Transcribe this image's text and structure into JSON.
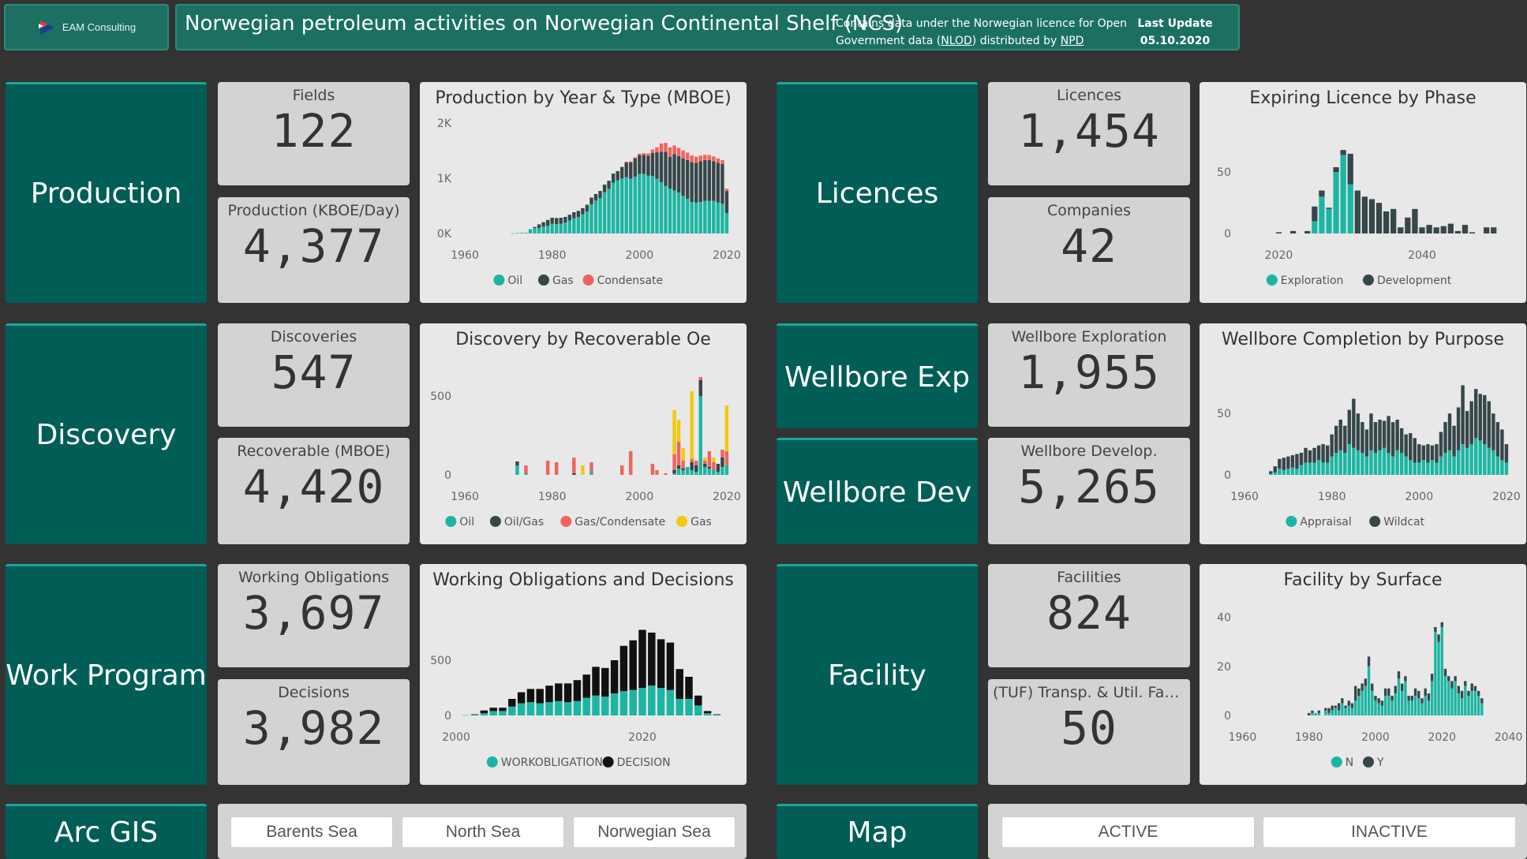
{
  "header": {
    "logo_text": "EAM Consulting",
    "title": "Norwegian petroleum activities on Norwegian Continental Shelf (NCS)",
    "licence_line1": "Contains data under the Norwegian licence for Open",
    "licence_line2_pre": "Government data (",
    "licence_link_nlod": "NLOD",
    "licence_line2_mid": ") distributed by ",
    "licence_link_npd": "NPD",
    "last_update_label": "Last Update",
    "last_update_value": "05.10.2020"
  },
  "tiles": {
    "production": "Production",
    "discovery": "Discovery",
    "work_program": "Work Program",
    "arcgis": "Arc GIS",
    "licences": "Licences",
    "wellbore_exp": "Wellbore Exp",
    "wellbore_dev": "Wellbore Dev",
    "facility": "Facility",
    "map": "Map"
  },
  "kpis": {
    "fields": {
      "label": "Fields",
      "value": "122"
    },
    "production": {
      "label": "Production (KBOE/Day)",
      "value": "4,377"
    },
    "discoveries": {
      "label": "Discoveries",
      "value": "547"
    },
    "recoverable": {
      "label": "Recoverable (MBOE)",
      "value": "4,420"
    },
    "working_obligations": {
      "label": "Working Obligations",
      "value": "3,697"
    },
    "decisions": {
      "label": "Decisions",
      "value": "3,982"
    },
    "licences": {
      "label": "Licences",
      "value": "1,454"
    },
    "companies": {
      "label": "Companies",
      "value": "42"
    },
    "wellbore_exploration": {
      "label": "Wellbore Exploration",
      "value": "1,955"
    },
    "wellbore_develop": {
      "label": "Wellbore Develop.",
      "value": "5,265"
    },
    "facilities": {
      "label": "Facilities",
      "value": "824"
    },
    "tuf": {
      "label": "(TUF) Transp. & Util. Faci...",
      "value": "50"
    }
  },
  "slicers": {
    "sea": [
      "Barents Sea",
      "North Sea",
      "Norwegian Sea"
    ],
    "status": [
      "ACTIVE",
      "INACTIVE"
    ]
  },
  "colors": {
    "teal": "#1cb5a3",
    "dark": "#374649",
    "red": "#f0645f",
    "yellow": "#f2c80f",
    "black": "#111111"
  },
  "chart_data": [
    {
      "id": "production",
      "type": "bar",
      "stacked": true,
      "title": "Production by Year & Type (MBOE)",
      "x": [
        1971,
        1972,
        1973,
        1974,
        1975,
        1976,
        1977,
        1978,
        1979,
        1980,
        1981,
        1982,
        1983,
        1984,
        1985,
        1986,
        1987,
        1988,
        1989,
        1990,
        1991,
        1992,
        1993,
        1994,
        1995,
        1996,
        1997,
        1998,
        1999,
        2000,
        2001,
        2002,
        2003,
        2004,
        2005,
        2006,
        2007,
        2008,
        2009,
        2010,
        2011,
        2012,
        2013,
        2014,
        2015,
        2016,
        2017,
        2018,
        2019,
        2020
      ],
      "series": [
        {
          "name": "Oil",
          "color": "#1cb5a3",
          "values": [
            2,
            10,
            12,
            13,
            70,
            98,
            100,
            125,
            140,
            175,
            170,
            175,
            200,
            235,
            275,
            300,
            350,
            400,
            525,
            595,
            640,
            750,
            810,
            920,
            960,
            1000,
            1020,
            990,
            1030,
            1080,
            1080,
            1050,
            1040,
            990,
            930,
            860,
            810,
            780,
            740,
            680,
            630,
            570,
            560,
            570,
            590,
            590,
            590,
            560,
            540,
            370
          ]
        },
        {
          "name": "Gas",
          "color": "#374649",
          "values": [
            0,
            0,
            0,
            0,
            5,
            20,
            65,
            80,
            105,
            110,
            110,
            110,
            100,
            105,
            110,
            110,
            110,
            120,
            125,
            120,
            130,
            135,
            145,
            165,
            170,
            200,
            265,
            300,
            330,
            340,
            345,
            360,
            420,
            480,
            550,
            620,
            580,
            660,
            660,
            680,
            700,
            720,
            720,
            740,
            740,
            740,
            720,
            720,
            720,
            400
          ]
        },
        {
          "name": "Condensate",
          "color": "#f0645f",
          "values": [
            0,
            0,
            0,
            0,
            0,
            0,
            0,
            0,
            0,
            0,
            0,
            0,
            0,
            0,
            0,
            0,
            0,
            0,
            0,
            0,
            0,
            0,
            0,
            0,
            0,
            10,
            15,
            15,
            20,
            25,
            30,
            40,
            60,
            90,
            150,
            160,
            170,
            155,
            150,
            145,
            135,
            125,
            110,
            100,
            95,
            90,
            85,
            80,
            70,
            40
          ]
        }
      ],
      "yticks": [
        "0K",
        "1K",
        "2K"
      ],
      "ylim": [
        0,
        2000
      ],
      "xticks": [
        1960,
        1980,
        2000,
        2020
      ],
      "xlim": [
        1958,
        2022
      ]
    },
    {
      "id": "discovery",
      "type": "bar",
      "stacked": true,
      "title": "Discovery by Recoverable Oe",
      "x": [
        1972,
        1974,
        1979,
        1981,
        1985,
        1987,
        1989,
        1996,
        1998,
        2003,
        2004,
        2006,
        2008,
        2009,
        2010,
        2011,
        2012,
        2013,
        2014,
        2015,
        2016,
        2017,
        2018,
        2019,
        2020
      ],
      "series": [
        {
          "name": "Oil",
          "color": "#1cb5a3",
          "values": [
            60,
            10,
            0,
            0,
            0,
            0,
            20,
            0,
            0,
            0,
            0,
            0,
            10,
            40,
            30,
            50,
            30,
            20,
            500,
            50,
            40,
            30,
            20,
            50,
            60
          ]
        },
        {
          "name": "Oil/Gas",
          "color": "#374649",
          "values": [
            25,
            0,
            0,
            0,
            10,
            0,
            0,
            0,
            0,
            0,
            0,
            0,
            20,
            20,
            10,
            0,
            50,
            40,
            100,
            20,
            10,
            0,
            50,
            60,
            0
          ]
        },
        {
          "name": "Gas/Condensate",
          "color": "#f0645f",
          "values": [
            0,
            50,
            90,
            80,
            100,
            0,
            60,
            60,
            150,
            70,
            30,
            10,
            100,
            150,
            50,
            0,
            20,
            30,
            20,
            20,
            100,
            50,
            0,
            50,
            90
          ]
        },
        {
          "name": "Gas",
          "color": "#f2c80f",
          "values": [
            0,
            0,
            0,
            0,
            0,
            60,
            0,
            0,
            0,
            0,
            0,
            0,
            280,
            140,
            80,
            0,
            430,
            0,
            0,
            20,
            0,
            30,
            0,
            0,
            290
          ]
        }
      ],
      "yticks": [
        "0",
        "500"
      ],
      "ylim": [
        0,
        700
      ],
      "xticks": [
        1960,
        1980,
        2000,
        2020
      ],
      "xlim": [
        1958,
        2022
      ]
    },
    {
      "id": "workobligations",
      "type": "bar",
      "stacked": true,
      "title": "Working Obligations and Decisions",
      "x": [
        2001,
        2002,
        2003,
        2004,
        2005,
        2006,
        2007,
        2008,
        2009,
        2010,
        2011,
        2012,
        2013,
        2014,
        2015,
        2016,
        2017,
        2018,
        2019,
        2020,
        2021,
        2022,
        2023,
        2024,
        2025,
        2026,
        2027,
        2028
      ],
      "series": [
        {
          "name": "WORKOBLIGATION",
          "color": "#1cb5a3",
          "values": [
            2,
            5,
            20,
            40,
            40,
            80,
            110,
            120,
            110,
            120,
            130,
            120,
            130,
            160,
            180,
            170,
            200,
            220,
            230,
            250,
            270,
            250,
            230,
            150,
            150,
            90,
            20,
            5
          ]
        },
        {
          "name": "DECISION",
          "color": "#111111",
          "values": [
            0,
            5,
            25,
            30,
            30,
            70,
            100,
            120,
            130,
            150,
            160,
            170,
            190,
            210,
            260,
            260,
            300,
            410,
            450,
            525,
            480,
            440,
            430,
            270,
            200,
            90,
            20,
            5
          ]
        }
      ],
      "yticks": [
        "0",
        "500"
      ],
      "ylim": [
        0,
        1000
      ],
      "xticks": [
        2000,
        2020
      ],
      "xlim": [
        2000,
        2030
      ]
    },
    {
      "id": "expiring",
      "type": "bar",
      "stacked": true,
      "title": "Expiring Licence by Phase",
      "x": [
        2015,
        2016,
        2017,
        2018,
        2019,
        2020,
        2021,
        2022,
        2023,
        2024,
        2025,
        2026,
        2027,
        2028,
        2029,
        2030,
        2031,
        2032,
        2033,
        2034,
        2035,
        2036,
        2037,
        2038,
        2039,
        2040,
        2041,
        2042,
        2043,
        2044,
        2045,
        2046,
        2047,
        2048,
        2049,
        2050
      ],
      "series": [
        {
          "name": "Exploration",
          "color": "#1cb5a3",
          "values": [
            0,
            0,
            0,
            0,
            0,
            0,
            0,
            0,
            0,
            0,
            10,
            30,
            20,
            50,
            64,
            40,
            0,
            0,
            0,
            0,
            0,
            0,
            0,
            0,
            0,
            0,
            0,
            0,
            0,
            0,
            0,
            0,
            0,
            0,
            0,
            0
          ]
        },
        {
          "name": "Development",
          "color": "#374649",
          "values": [
            0,
            0,
            0,
            0,
            0,
            1,
            0,
            2,
            0,
            2,
            12,
            5,
            1,
            4,
            4,
            25,
            35,
            30,
            28,
            25,
            18,
            20,
            5,
            13,
            20,
            5,
            7,
            5,
            6,
            8,
            2,
            7,
            1,
            0,
            5,
            5
          ]
        }
      ],
      "yticks": [
        "0",
        "50"
      ],
      "ylim": [
        0,
        90
      ],
      "xticks": [
        2020,
        2040
      ],
      "xlim": [
        2014,
        2053
      ]
    },
    {
      "id": "wellbore_completion",
      "type": "bar",
      "stacked": true,
      "title": "Wellbore Completion by Purpose",
      "x": [
        1966,
        1967,
        1968,
        1969,
        1970,
        1971,
        1972,
        1973,
        1974,
        1975,
        1976,
        1977,
        1978,
        1979,
        1980,
        1981,
        1982,
        1983,
        1984,
        1985,
        1986,
        1987,
        1988,
        1989,
        1990,
        1991,
        1992,
        1993,
        1994,
        1995,
        1996,
        1997,
        1998,
        1999,
        2000,
        2001,
        2002,
        2003,
        2004,
        2005,
        2006,
        2007,
        2008,
        2009,
        2010,
        2011,
        2012,
        2013,
        2014,
        2015,
        2016,
        2017,
        2018,
        2019,
        2020
      ],
      "series": [
        {
          "name": "Appraisal",
          "color": "#1cb5a3",
          "values": [
            1,
            2,
            5,
            4,
            5,
            6,
            5,
            8,
            10,
            10,
            10,
            12,
            10,
            10,
            15,
            18,
            20,
            18,
            25,
            22,
            20,
            18,
            15,
            20,
            18,
            20,
            22,
            18,
            15,
            20,
            18,
            15,
            12,
            10,
            10,
            12,
            10,
            12,
            10,
            15,
            18,
            20,
            15,
            20,
            25,
            22,
            25,
            30,
            28,
            25,
            22,
            20,
            15,
            12,
            10
          ]
        },
        {
          "name": "Wildcat",
          "color": "#374649",
          "values": [
            2,
            5,
            8,
            10,
            10,
            10,
            12,
            10,
            12,
            10,
            12,
            12,
            15,
            14,
            18,
            22,
            25,
            22,
            28,
            40,
            30,
            25,
            22,
            30,
            25,
            25,
            22,
            30,
            28,
            25,
            20,
            18,
            22,
            20,
            15,
            12,
            15,
            12,
            15,
            20,
            25,
            30,
            25,
            35,
            48,
            30,
            35,
            40,
            38,
            40,
            38,
            30,
            28,
            25,
            15
          ]
        }
      ],
      "yticks": [
        "0",
        "50"
      ],
      "ylim": [
        0,
        90
      ],
      "xticks": [
        1960,
        1980,
        2000,
        2020
      ],
      "xlim": [
        1958,
        2022
      ]
    },
    {
      "id": "facility_surface",
      "type": "bar",
      "stacked": true,
      "title": "Facility by Surface",
      "x": [
        1975,
        1976,
        1977,
        1978,
        1979,
        1980,
        1981,
        1982,
        1983,
        1984,
        1985,
        1986,
        1987,
        1988,
        1989,
        1990,
        1991,
        1992,
        1993,
        1994,
        1995,
        1996,
        1997,
        1998,
        1999,
        2000,
        2001,
        2002,
        2003,
        2004,
        2005,
        2006,
        2007,
        2008,
        2009,
        2010,
        2011,
        2012,
        2013,
        2014,
        2015,
        2016,
        2017,
        2018,
        2019,
        2020,
        2021,
        2022,
        2023,
        2024,
        2025,
        2026,
        2027,
        2028,
        2029,
        2030,
        2031,
        2032,
        2033,
        2034,
        2035,
        2036,
        2037,
        2038
      ],
      "series": [
        {
          "name": "N",
          "color": "#1cb5a3",
          "values": [
            0,
            0,
            0,
            0,
            0,
            0,
            1,
            1,
            1,
            0,
            2,
            1,
            2,
            3,
            2,
            5,
            3,
            4,
            3,
            6,
            8,
            10,
            12,
            20,
            10,
            6,
            5,
            4,
            8,
            8,
            6,
            9,
            15,
            10,
            14,
            6,
            6,
            8,
            7,
            5,
            8,
            6,
            14,
            34,
            30,
            36,
            16,
            14,
            11,
            14,
            9,
            7,
            12,
            8,
            10,
            10,
            8,
            5,
            0,
            0,
            0,
            0,
            0,
            0
          ]
        },
        {
          "name": "Y",
          "color": "#374649",
          "values": [
            0,
            0,
            0,
            0,
            0,
            1,
            1,
            0,
            1,
            0,
            1,
            2,
            2,
            1,
            3,
            2,
            1,
            2,
            2,
            6,
            3,
            3,
            3,
            4,
            3,
            2,
            2,
            2,
            3,
            3,
            2,
            3,
            3,
            3,
            2,
            2,
            2,
            3,
            3,
            2,
            3,
            3,
            3,
            2,
            3,
            2,
            3,
            2,
            3,
            2,
            3,
            3,
            2,
            2,
            3,
            2,
            2,
            2,
            0,
            0,
            0,
            0,
            0,
            0
          ]
        }
      ],
      "yticks": [
        "0",
        "20",
        "40"
      ],
      "ylim": [
        0,
        45
      ],
      "xticks": [
        1960,
        1980,
        2000,
        2020,
        2040
      ],
      "xlim": [
        1958,
        2042
      ]
    }
  ]
}
